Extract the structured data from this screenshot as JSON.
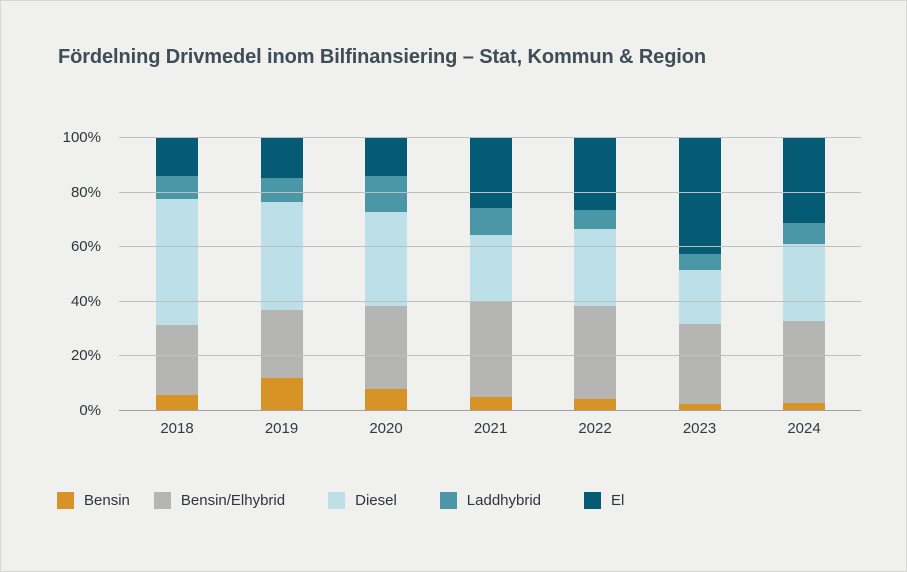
{
  "title": "Fördelning Drivmedel inom Bilfinansiering  – Stat, Kommun & Region",
  "colors": {
    "background": "#f0f0ee",
    "title_text": "#3e4d57",
    "axis_text": "#2f353c",
    "gridline": "#bfbfbd",
    "baseline": "#9f9f9d"
  },
  "chart_data": {
    "type": "bar",
    "subtype": "stacked-percent-column",
    "title": "Fördelning Drivmedel inom Bilfinansiering  – Stat, Kommun & Region",
    "categories": [
      "2018",
      "2019",
      "2020",
      "2021",
      "2022",
      "2023",
      "2024"
    ],
    "series": [
      {
        "name": "Bensin",
        "color": "#d89327",
        "values": [
          6,
          12,
          8,
          5,
          4.5,
          2.5,
          3
        ]
      },
      {
        "name": "Bensin/Elhybrid",
        "color": "#b5b5b3",
        "values": [
          25.5,
          25,
          30.5,
          35,
          34,
          29.5,
          30
        ]
      },
      {
        "name": "Diesel",
        "color": "#bcdfe8",
        "values": [
          46,
          39.5,
          34.5,
          24.5,
          28,
          19.5,
          28
        ]
      },
      {
        "name": "Laddhybrid",
        "color": "#4b96a7",
        "values": [
          8.5,
          9,
          13,
          10,
          7,
          6,
          8
        ]
      },
      {
        "name": "El",
        "color": "#065b74",
        "values": [
          14,
          14.5,
          14,
          25.5,
          26.5,
          42.5,
          31
        ]
      }
    ],
    "xlabel": "",
    "ylabel": "",
    "ylim": [
      0,
      100
    ],
    "y_ticks": [
      "0%",
      "20%",
      "40%",
      "60%",
      "80%",
      "100%"
    ],
    "grid": true,
    "legend_position": "bottom"
  }
}
